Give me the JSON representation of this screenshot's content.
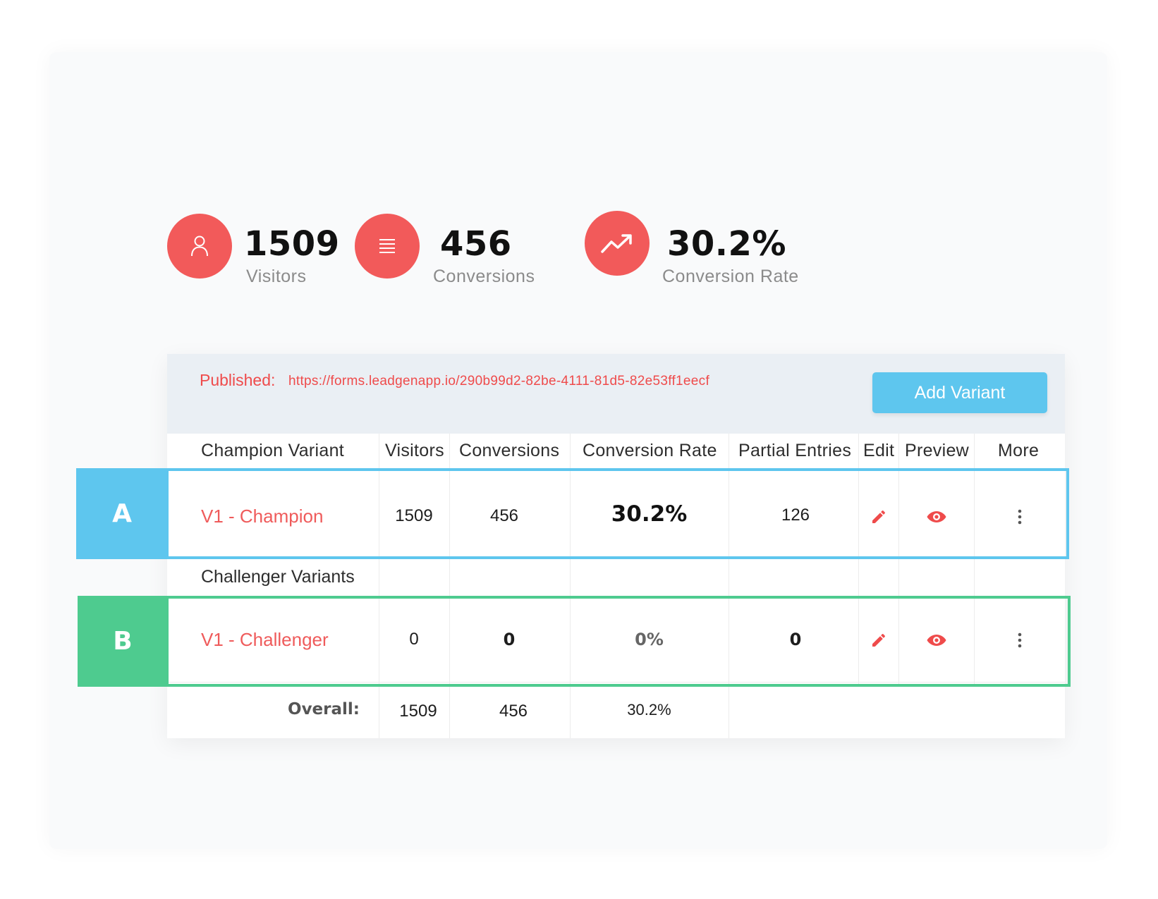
{
  "stats": [
    {
      "value": "1509",
      "label": "Visitors",
      "icon": "user-icon"
    },
    {
      "value": "456",
      "label": "Conversions",
      "icon": "list-icon"
    },
    {
      "value": "30.2%",
      "label": "Conversion Rate",
      "icon": "trend-up-icon"
    }
  ],
  "published": {
    "label": "Published:",
    "url": "https://forms.leadgenapp.io/290b99d2-82be-4111-81d5-82e53ff1eecf"
  },
  "add_variant_label": "Add Variant",
  "table": {
    "headers": [
      "Champion Variant",
      "Visitors",
      "Conversions",
      "Conversion Rate",
      "Partial Entries",
      "Edit",
      "Preview",
      "More"
    ],
    "champion": {
      "tag": "A",
      "name": "V1 - Champion",
      "visitors": "1509",
      "conversions": "456",
      "rate": "30.2%",
      "partial": "126"
    },
    "challenger_title": "Challenger Variants",
    "challenger": {
      "tag": "B",
      "name": "V1 - Challenger",
      "visitors": "0",
      "conversions": "0",
      "rate": "0%",
      "partial": "0"
    },
    "overall": {
      "label": "Overall:",
      "visitors": "1509",
      "conversions": "456",
      "rate": "30.2%"
    }
  },
  "colors": {
    "accent_red": "#f25a5a",
    "champion_blue": "#5ec6ee",
    "challenger_green": "#4ecb8f",
    "button_blue": "#5ec6ee"
  }
}
